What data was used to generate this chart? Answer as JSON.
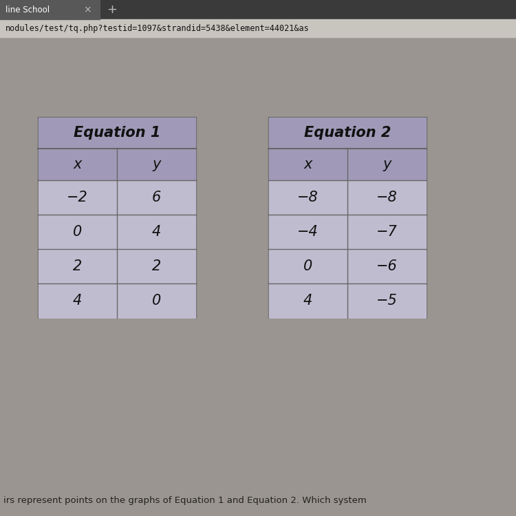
{
  "browser_bar_text": "nodules/test/tq.php?testid=1097&strandid=5438&element=44021&as",
  "tab_text": "line School",
  "table1_title": "Equation 1",
  "table2_title": "Equation 2",
  "col_headers": [
    "x",
    "y"
  ],
  "table1_rows": [
    [
      "−2",
      "6"
    ],
    [
      "0",
      "4"
    ],
    [
      "2",
      "2"
    ],
    [
      "4",
      "0"
    ]
  ],
  "table2_rows": [
    [
      "−8",
      "−8"
    ],
    [
      "−4",
      "−7"
    ],
    [
      "0",
      "−6"
    ],
    [
      "4",
      "−5"
    ]
  ],
  "footer_text": "irs represent points on the graphs of Equation 1 and Equation 2. Which system",
  "bg_color": "#8c8880",
  "tab_bar_color": "#3a3a3a",
  "tab_active_color": "#585858",
  "url_bar_color": "#c8c4be",
  "table_header_color": "#a09ab8",
  "table_cell_color": "#c0bcd0",
  "table_border_color": "#666666",
  "text_color": "#111111",
  "footer_text_color": "#222222",
  "url_text_color": "#111111",
  "tab_text_color": "#ffffff",
  "tab_bar_text_color": "#cccccc",
  "content_bg_color": "#9a9590"
}
